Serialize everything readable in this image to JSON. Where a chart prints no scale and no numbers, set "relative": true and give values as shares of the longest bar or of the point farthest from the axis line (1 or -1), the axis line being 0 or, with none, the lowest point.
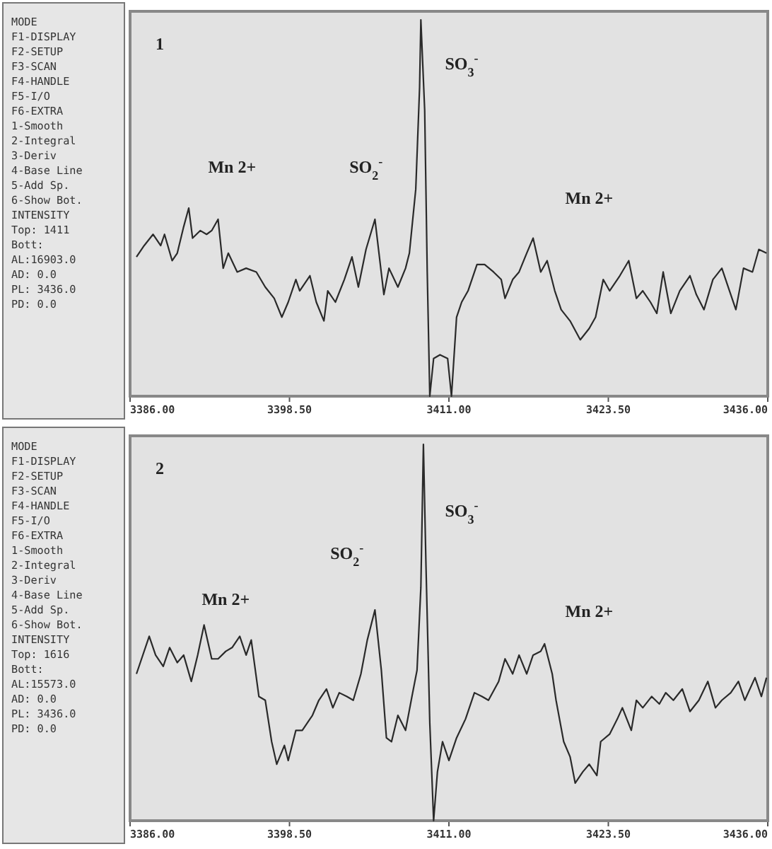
{
  "chart_data": [
    {
      "type": "other",
      "annotations": [
        "MODE",
        "F1-DISPLAY",
        "F2-SETUP",
        "F3-SCAN",
        "F4-HANDLE",
        "F5-I/O",
        "F6-EXTRA",
        "1-Smooth",
        "2-Integral",
        "3-Deriv",
        "4-Base Line",
        "5-Add Sp.",
        "6-Show Bot.",
        "INTENSITY",
        "Top:   1411",
        "Bott:",
        "AL:16903.0",
        "AD:      0.0",
        "PL:  3436.0",
        "PD:      0.0"
      ]
    },
    {
      "type": "line",
      "relative": true,
      "color": "#2a2a2a",
      "xlim": [
        3386,
        3436
      ],
      "xticks": [
        {
          "value": 3386,
          "label": "3386.00"
        },
        {
          "value": 3398.5,
          "label": "3398.50"
        },
        {
          "value": 3411,
          "label": "3411.00"
        },
        {
          "value": 3423.5,
          "label": "3423.50"
        },
        {
          "value": 3436,
          "label": "3436.00"
        }
      ],
      "x": [
        3386.5,
        3387.1,
        3387.8,
        3388.4,
        3388.7,
        3389.3,
        3389.7,
        3390.2,
        3390.6,
        3390.9,
        3391.5,
        3392.0,
        3392.4,
        3392.9,
        3393.3,
        3393.7,
        3394.4,
        3395.1,
        3395.9,
        3396.6,
        3397.3,
        3397.9,
        3398.4,
        3399.0,
        3399.3,
        3400.1,
        3400.6,
        3401.2,
        3401.5,
        3402.1,
        3402.8,
        3403.4,
        3403.9,
        3404.5,
        3405.2,
        3405.9,
        3406.3,
        3407.0,
        3407.6,
        3407.9,
        3408.4,
        3408.7,
        3408.8,
        3409.1,
        3409.3,
        3409.5,
        3409.8,
        3410.3,
        3410.9,
        3411.2,
        3411.6,
        3412.0,
        3412.5,
        3413.2,
        3413.8,
        3414.5,
        3415.1,
        3415.4,
        3416.0,
        3416.5,
        3417.1,
        3417.6,
        3418.2,
        3418.7,
        3419.3,
        3419.8,
        3420.5,
        3421.3,
        3422.0,
        3422.5,
        3423.1,
        3423.6,
        3424.4,
        3425.1,
        3425.7,
        3426.2,
        3426.8,
        3427.3,
        3427.8,
        3428.4,
        3429.1,
        3429.9,
        3430.4,
        3431.0,
        3431.7,
        3432.4,
        3433.0,
        3433.5,
        3434.1,
        3434.8,
        3435.3,
        3435.9
      ],
      "values": [
        0.37,
        0.4,
        0.43,
        0.4,
        0.43,
        0.36,
        0.38,
        0.45,
        0.5,
        0.42,
        0.44,
        0.43,
        0.44,
        0.47,
        0.34,
        0.38,
        0.33,
        0.34,
        0.33,
        0.29,
        0.26,
        0.21,
        0.25,
        0.31,
        0.28,
        0.32,
        0.25,
        0.2,
        0.28,
        0.25,
        0.31,
        0.37,
        0.29,
        0.39,
        0.47,
        0.27,
        0.34,
        0.29,
        0.34,
        0.38,
        0.55,
        0.82,
        1,
        0.76,
        0.33,
        0,
        0.1,
        0.11,
        0.1,
        0,
        0.21,
        0.25,
        0.28,
        0.35,
        0.35,
        0.33,
        0.31,
        0.26,
        0.31,
        0.33,
        0.38,
        0.42,
        0.33,
        0.36,
        0.28,
        0.23,
        0.2,
        0.15,
        0.18,
        0.21,
        0.31,
        0.28,
        0.32,
        0.36,
        0.26,
        0.28,
        0.25,
        0.22,
        0.33,
        0.22,
        0.28,
        0.32,
        0.27,
        0.23,
        0.31,
        0.34,
        0.28,
        0.23,
        0.34,
        0.33,
        0.39,
        0.38
      ],
      "annotations": [
        "1",
        "Mn 2+",
        "SO$_{2}$$^{-}$",
        "SO$_{3}$$^{-}$",
        "Mn 2+"
      ]
    },
    {
      "type": "other",
      "annotations": [
        "MODE",
        "F1-DISPLAY",
        "F2-SETUP",
        "F3-SCAN",
        "F4-HANDLE",
        "F5-I/O",
        "F6-EXTRA",
        "1-Smooth",
        "2-Integral",
        "3-Deriv",
        "4-Base Line",
        "5-Add Sp.",
        "6-Show Bot.",
        "INTENSITY",
        "Top:   1616",
        "Bott:",
        "AL:15573.0",
        "AD:      0.0",
        "PL:  3436.0",
        "PD:      0.0"
      ]
    },
    {
      "type": "line",
      "relative": true,
      "color": "#2a2a2a",
      "xlim": [
        3386,
        3436
      ],
      "xticks": [
        {
          "value": 3386,
          "label": "3386.00"
        },
        {
          "value": 3398.5,
          "label": "3398.50"
        },
        {
          "value": 3411,
          "label": "3411.00"
        },
        {
          "value": 3423.5,
          "label": "3423.50"
        },
        {
          "value": 3436,
          "label": "3436.00"
        }
      ],
      "x": [
        3386.5,
        3387.5,
        3388.0,
        3388.6,
        3389.1,
        3389.7,
        3390.2,
        3390.8,
        3391.3,
        3391.8,
        3392.4,
        3392.9,
        3393.5,
        3394.0,
        3394.6,
        3395.1,
        3395.5,
        3396.1,
        3396.6,
        3397.1,
        3397.5,
        3398.1,
        3398.4,
        3399.0,
        3399.5,
        3400.3,
        3400.8,
        3401.4,
        3401.9,
        3402.4,
        3403.0,
        3403.5,
        3404.1,
        3404.6,
        3405.2,
        3405.7,
        3406.1,
        3406.5,
        3407.0,
        3407.6,
        3408.1,
        3408.5,
        3408.8,
        3409.0,
        3409.2,
        3409.5,
        3409.8,
        3410.1,
        3410.5,
        3411.0,
        3411.6,
        3412.3,
        3413.0,
        3413.6,
        3414.1,
        3414.9,
        3415.4,
        3416.0,
        3416.5,
        3417.1,
        3417.6,
        3418.2,
        3418.5,
        3419.1,
        3419.4,
        3420.0,
        3420.5,
        3420.9,
        3421.5,
        3422.0,
        3422.6,
        3422.9,
        3423.6,
        3424.2,
        3424.6,
        3425.3,
        3425.7,
        3426.2,
        3426.9,
        3427.5,
        3428.0,
        3428.6,
        3429.3,
        3429.9,
        3430.6,
        3431.3,
        3431.9,
        3432.4,
        3433.1,
        3433.7,
        3434.2,
        3435.0,
        3435.5,
        3435.9
      ],
      "values": [
        0.39,
        0.49,
        0.44,
        0.41,
        0.46,
        0.42,
        0.44,
        0.37,
        0.44,
        0.52,
        0.43,
        0.43,
        0.45,
        0.46,
        0.49,
        0.44,
        0.48,
        0.33,
        0.32,
        0.21,
        0.15,
        0.2,
        0.16,
        0.24,
        0.24,
        0.28,
        0.32,
        0.35,
        0.3,
        0.34,
        0.33,
        0.32,
        0.39,
        0.48,
        0.56,
        0.4,
        0.22,
        0.21,
        0.28,
        0.24,
        0.33,
        0.4,
        0.62,
        1,
        0.68,
        0.26,
        0,
        0.13,
        0.21,
        0.16,
        0.22,
        0.27,
        0.34,
        0.33,
        0.32,
        0.37,
        0.43,
        0.39,
        0.44,
        0.39,
        0.44,
        0.45,
        0.47,
        0.39,
        0.32,
        0.21,
        0.17,
        0.1,
        0.13,
        0.15,
        0.12,
        0.21,
        0.23,
        0.27,
        0.3,
        0.24,
        0.32,
        0.3,
        0.33,
        0.31,
        0.34,
        0.32,
        0.35,
        0.29,
        0.32,
        0.37,
        0.3,
        0.32,
        0.34,
        0.37,
        0.32,
        0.38,
        0.33,
        0.38
      ],
      "annotations": [
        "2",
        "Mn 2+",
        "SO$_{2}$$^{-}$",
        "SO$_{3}$$^{-}$",
        "Mn 2+"
      ]
    }
  ]
}
